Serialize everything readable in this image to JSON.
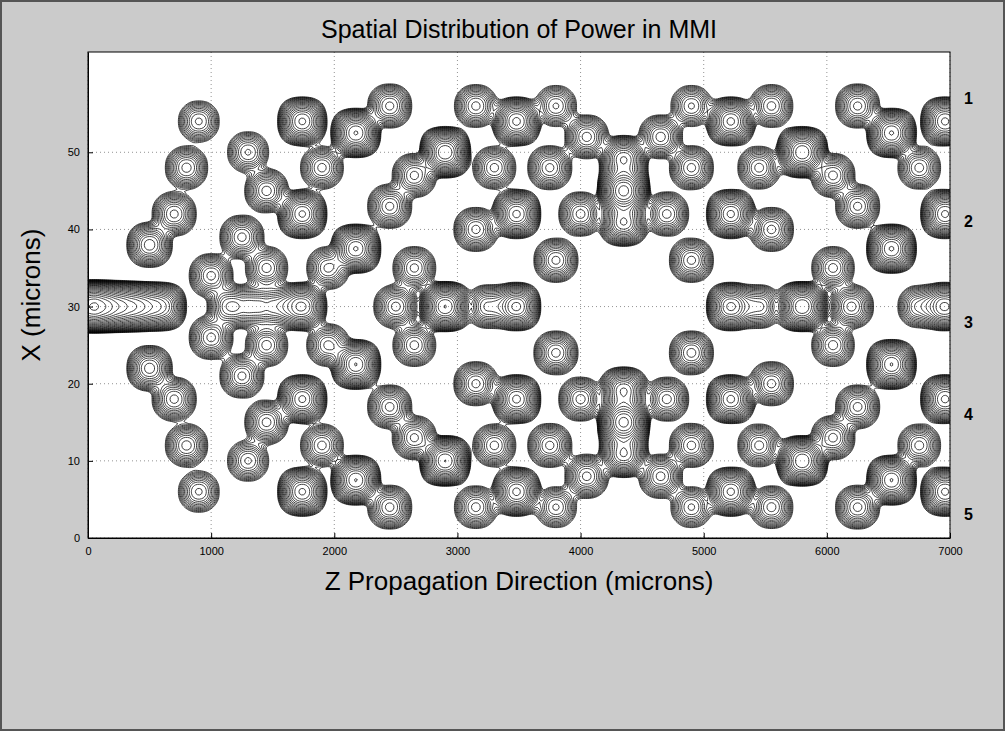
{
  "chart_data": {
    "type": "contour",
    "title": "Spatial Distribution of Power in MMI",
    "x_label": "Z Propagation Direction (microns)",
    "y_label": "X (microns)",
    "xlim": [
      0,
      7000
    ],
    "xticks": [
      0,
      1000,
      2000,
      3000,
      4000,
      5000,
      6000,
      7000
    ],
    "ylim": [
      0,
      63
    ],
    "yticks": [
      0,
      10,
      20,
      30,
      40,
      50
    ],
    "grid": true,
    "color": "#000000",
    "spots": {
      "z": [
        0,
        120,
        260,
        420,
        600,
        500,
        500,
        700,
        700,
        800,
        800,
        900,
        900,
        1000,
        1000,
        1150,
        1250,
        1250,
        1350,
        1450,
        1450,
        1450,
        1450,
        1300,
        1300,
        1550,
        1740,
        1740,
        1740,
        1740,
        1740,
        1900,
        1900,
        1950,
        1950,
        2175,
        2175,
        2175,
        2175,
        2450,
        2450,
        2450,
        2450,
        2500,
        2650,
        2650,
        2650,
        2650,
        2900,
        2900,
        2900,
        3150,
        3150,
        3150,
        3150,
        3250,
        3300,
        3300,
        3480,
        3480,
        3480,
        3480,
        3480,
        3750,
        3750,
        3800,
        3800,
        3800,
        3800,
        4000,
        4000,
        4050,
        4050,
        4350,
        4350,
        4350,
        4350,
        4350,
        4350,
        4650,
        4650,
        4700,
        4700,
        4900,
        4900,
        4900,
        4900,
        4900,
        4900,
        5220,
        5220,
        5220,
        5220,
        5220,
        5450,
        5450,
        5550,
        5550,
        5550,
        5550,
        5450,
        5800,
        5800,
        5800,
        6050,
        6050,
        6050,
        6050,
        6250,
        6250,
        6250,
        6250,
        6200,
        6525,
        6525,
        6525,
        6525,
        6750,
        6750,
        6750,
        6960,
        6960,
        6960,
        6960,
        6960
      ],
      "x": [
        30,
        30,
        30,
        30,
        30,
        22,
        38,
        18,
        42,
        12,
        48,
        6,
        54,
        26,
        34,
        30,
        21,
        39,
        30,
        15,
        25,
        35,
        45,
        10,
        50,
        30,
        6,
        18,
        30,
        42,
        54,
        12,
        48,
        25,
        35,
        7.5,
        22.5,
        37.5,
        52.5,
        4,
        17,
        43,
        56,
        30,
        13,
        47,
        25,
        35,
        10,
        30,
        50,
        4,
        20,
        40,
        56,
        30,
        12,
        48,
        6,
        18,
        30,
        42,
        54,
        12,
        48,
        24,
        36,
        4,
        56,
        18,
        42,
        8,
        52,
        15,
        45,
        11,
        19,
        41,
        49,
        8,
        52,
        18,
        42,
        12,
        48,
        24,
        36,
        4,
        56,
        6,
        18,
        30,
        42,
        54,
        12,
        48,
        4,
        20,
        40,
        56,
        30,
        10,
        30,
        50,
        13,
        47,
        25,
        35,
        4,
        17,
        43,
        56,
        30,
        7.5,
        22.5,
        37.5,
        52.5,
        12,
        48,
        30,
        6,
        18,
        30,
        42,
        54
      ],
      "power": [
        1.2,
        0.8,
        0.6,
        0.45,
        0.3,
        0.15,
        0.15,
        0.12,
        0.12,
        0.1,
        0.1,
        0.08,
        0.08,
        0.12,
        0.12,
        0.14,
        0.12,
        0.12,
        0.12,
        0.12,
        0.1,
        0.1,
        0.12,
        0.08,
        0.08,
        0.12,
        0.3,
        0.3,
        0.3,
        0.3,
        0.3,
        0.1,
        0.1,
        0.1,
        0.1,
        0.35,
        0.35,
        0.35,
        0.35,
        0.12,
        0.12,
        0.12,
        0.12,
        0.12,
        0.12,
        0.12,
        0.1,
        0.1,
        0.5,
        0.5,
        0.5,
        0.1,
        0.12,
        0.12,
        0.1,
        0.12,
        0.1,
        0.1,
        0.3,
        0.3,
        0.3,
        0.3,
        0.3,
        0.12,
        0.12,
        0.12,
        0.12,
        0.08,
        0.08,
        0.12,
        0.12,
        0.12,
        0.12,
        0.8,
        0.8,
        0.3,
        0.3,
        0.3,
        0.3,
        0.12,
        0.12,
        0.12,
        0.12,
        0.12,
        0.12,
        0.12,
        0.12,
        0.08,
        0.08,
        0.3,
        0.3,
        0.3,
        0.3,
        0.3,
        0.1,
        0.1,
        0.1,
        0.12,
        0.12,
        0.1,
        0.12,
        0.5,
        0.5,
        0.5,
        0.12,
        0.12,
        0.1,
        0.1,
        0.12,
        0.12,
        0.12,
        0.12,
        0.12,
        0.35,
        0.35,
        0.35,
        0.35,
        0.1,
        0.1,
        0.1,
        0.3,
        0.3,
        0.3,
        0.3,
        0.3
      ]
    },
    "ports": {
      "labels": [
        "1",
        "2",
        "3",
        "4",
        "5"
      ],
      "x": [
        57,
        41,
        28,
        16,
        3
      ]
    }
  }
}
